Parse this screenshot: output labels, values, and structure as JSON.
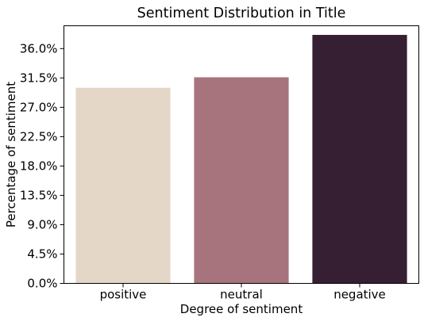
{
  "chart_data": {
    "type": "bar",
    "title": "Sentiment Distribution in Title",
    "xlabel": "Degree of sentiment",
    "ylabel": "Percentage of sentiment",
    "categories": [
      "positive",
      "neutral",
      "negative"
    ],
    "values": [
      30.0,
      31.6,
      38.1
    ],
    "colors": [
      "#e4d7c8",
      "#a7747d",
      "#361f33"
    ],
    "ylim": [
      0,
      39.5
    ],
    "yticks": [
      0,
      4.5,
      9,
      13.5,
      18,
      22.5,
      27,
      31.5,
      36
    ],
    "ytick_labels": [
      "0.0%",
      "4.5%",
      "9.0%",
      "13.5%",
      "18.0%",
      "22.5%",
      "27.0%",
      "31.5%",
      "36.0%"
    ],
    "grid": false,
    "legend": "none"
  }
}
